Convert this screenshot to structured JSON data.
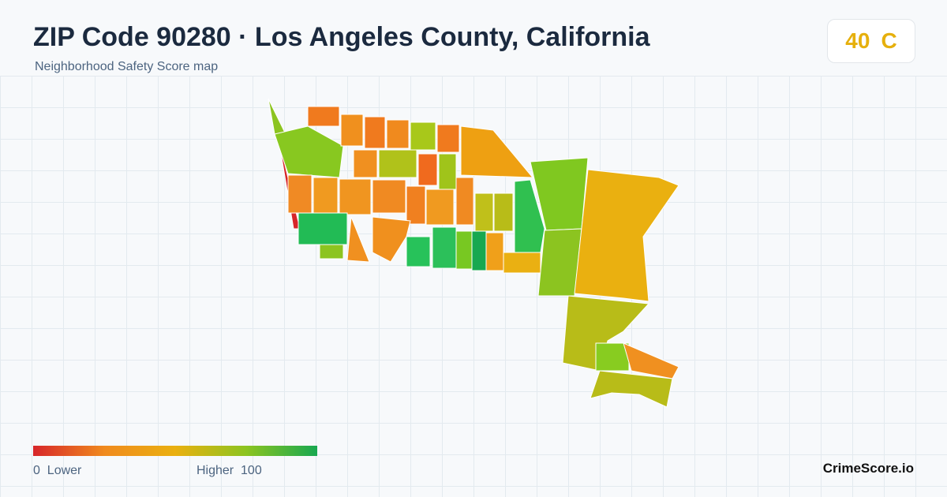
{
  "header": {
    "title": "ZIP Code 90280 · Los Angeles County, California",
    "subtitle": "Neighborhood Safety Score map"
  },
  "score": {
    "value": "40",
    "grade": "C"
  },
  "legend": {
    "min": "0",
    "min_label": "Lower",
    "max_label": "Higher",
    "max": "100"
  },
  "brand": "CrimeScore.io"
}
